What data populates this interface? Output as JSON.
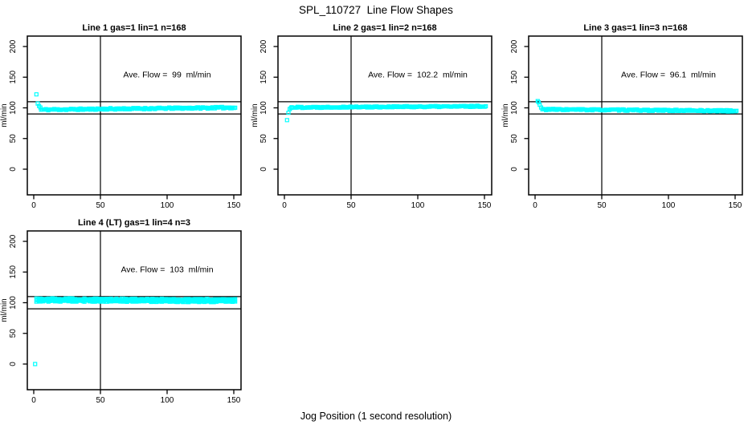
{
  "header": {
    "title": "SPL_110727  Line Flow Shapes"
  },
  "footer": {
    "xlabel": "Jog Position (1 second resolution)"
  },
  "colors": {
    "background": "#ffffff",
    "point": "#00FFFF",
    "axis": "#000000",
    "ref_line": "#000000"
  },
  "chart_data": {
    "type": "scatter",
    "title": "SPL_110727  Line Flow Shapes",
    "xlabel": "Jog Position (1 second resolution)",
    "ylabel": "ml/min",
    "marker": "open-square",
    "marker_color": "#00FFFF",
    "grid": false,
    "axes": {
      "xlim": [
        -5,
        155.4
      ],
      "ylim": [
        -42,
        217
      ],
      "x_ticks": [
        0,
        50,
        100,
        150
      ],
      "y_ticks": [
        0,
        50,
        100,
        150,
        200
      ],
      "ref_lines_y": [
        110,
        90
      ],
      "ref_line_x": 50
    },
    "panels": [
      {
        "title": "Line 1 gas=1 lin=1 n=168",
        "annotation": "Ave. Flow =  99  ml/min",
        "ave_flow": 99,
        "n": 168,
        "seed": 11,
        "transient_points": [
          [
            2,
            122
          ],
          [
            3,
            107
          ],
          [
            4,
            103
          ],
          [
            5,
            100.5
          ]
        ],
        "outlier_points": [],
        "steady_bands": [
          {
            "x_start": 5.5,
            "x_end": 151,
            "points": 163,
            "y_start": 97,
            "y_end": 100.5,
            "jitter": 1.2
          }
        ]
      },
      {
        "title": "Line 2 gas=1 lin=2 n=168",
        "annotation": "Ave. Flow =  102.2  ml/min",
        "ave_flow": 102.2,
        "n": 168,
        "seed": 22,
        "transient_points": [
          [
            2,
            80
          ],
          [
            3,
            92
          ],
          [
            4,
            98
          ],
          [
            5,
            100
          ]
        ],
        "outlier_points": [],
        "steady_bands": [
          {
            "x_start": 5.5,
            "x_end": 151,
            "points": 163,
            "y_start": 100.8,
            "y_end": 102.5,
            "jitter": 1.0
          }
        ]
      },
      {
        "title": "Line 3 gas=1 lin=3 n=168",
        "annotation": "Ave. Flow =  96.1  ml/min",
        "ave_flow": 96.1,
        "n": 168,
        "seed": 33,
        "transient_points": [
          [
            2,
            111
          ],
          [
            2.7,
            109
          ],
          [
            3.5,
            105
          ],
          [
            4.5,
            100.5
          ]
        ],
        "outlier_points": [],
        "steady_bands": [
          {
            "x_start": 5.5,
            "x_end": 151,
            "points": 163,
            "y_start": 97.5,
            "y_end": 95,
            "jitter": 1.1
          }
        ]
      },
      {
        "title": "Line 4 (LT) gas=1 lin=4 n=3",
        "annotation": "Ave. Flow =  103  ml/min",
        "ave_flow": 103,
        "n": 3,
        "seed": 44,
        "transient_points": [],
        "outlier_points": [
          [
            1,
            0
          ]
        ],
        "steady_bands": [
          {
            "x_start": 2,
            "x_end": 151,
            "points": 150,
            "y_start": 106,
            "y_end": 105,
            "jitter": 1.3
          },
          {
            "x_start": 2,
            "x_end": 151,
            "points": 150,
            "y_start": 104.5,
            "y_end": 103.5,
            "jitter": 1.3
          },
          {
            "x_start": 2,
            "x_end": 151,
            "points": 150,
            "y_start": 103,
            "y_end": 102,
            "jitter": 1.3
          }
        ]
      }
    ]
  }
}
